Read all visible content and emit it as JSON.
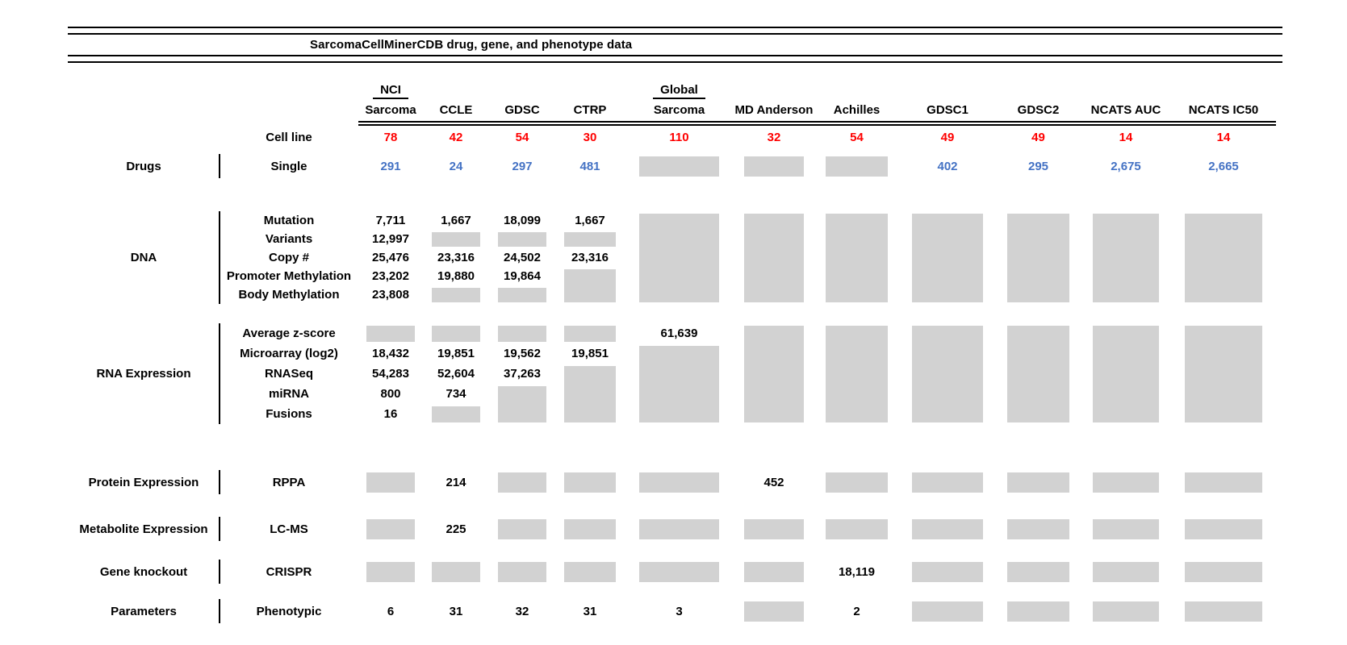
{
  "title": "SarcomaCellMinerCDB drug, gene, and phenotype data",
  "colors": {
    "count_red": "#FE0000",
    "drug_blue": "#4472C4",
    "no_data_box_gray": "#D2D2D2",
    "rule_black": "#000000"
  },
  "chart_data": {
    "type": "table",
    "title": "SarcomaCellMinerCDB drug, gene, and phenotype data",
    "columns": [
      {
        "top": "NCI",
        "label": "Sarcoma"
      },
      {
        "label": "CCLE"
      },
      {
        "label": "GDSC"
      },
      {
        "label": "CTRP"
      },
      {
        "top": "Global",
        "label": "Sarcoma"
      },
      {
        "label": "MD Anderson"
      },
      {
        "label": "Achilles"
      },
      {
        "label": "GDSC1"
      },
      {
        "label": "GDSC2"
      },
      {
        "label": "NCATS AUC"
      },
      {
        "label": "NCATS IC50"
      }
    ],
    "cell_line": {
      "label": "Cell line",
      "values": [
        "78",
        "42",
        "54",
        "30",
        "110",
        "32",
        "54",
        "49",
        "49",
        "14",
        "14"
      ]
    },
    "sections": [
      {
        "category": "Drugs",
        "value_color": "blue",
        "rows": [
          {
            "label": "Single",
            "values": [
              "291",
              "24",
              "297",
              "481",
              null,
              null,
              null,
              "402",
              "295",
              "2,675",
              "2,665"
            ]
          }
        ]
      },
      {
        "category": "DNA",
        "rows": [
          {
            "label": "Mutation",
            "values": [
              "7,711",
              "1,667",
              "18,099",
              "1,667",
              null,
              null,
              null,
              null,
              null,
              null,
              null
            ]
          },
          {
            "label": "Variants",
            "values": [
              "12,997",
              null,
              null,
              null,
              null,
              null,
              null,
              null,
              null,
              null,
              null
            ]
          },
          {
            "label": "Copy #",
            "values": [
              "25,476",
              "23,316",
              "24,502",
              "23,316",
              null,
              null,
              null,
              null,
              null,
              null,
              null
            ]
          },
          {
            "label": "Promoter Methylation",
            "values": [
              "23,202",
              "19,880",
              "19,864",
              null,
              null,
              null,
              null,
              null,
              null,
              null,
              null
            ]
          },
          {
            "label": "Body Methylation",
            "values": [
              "23,808",
              null,
              null,
              null,
              null,
              null,
              null,
              null,
              null,
              null,
              null
            ]
          }
        ]
      },
      {
        "category": "RNA Expression",
        "rows": [
          {
            "label": "Average z-score",
            "values": [
              null,
              null,
              null,
              null,
              "61,639",
              null,
              null,
              null,
              null,
              null,
              null
            ]
          },
          {
            "label": "Microarray (log2)",
            "values": [
              "18,432",
              "19,851",
              "19,562",
              "19,851",
              null,
              null,
              null,
              null,
              null,
              null,
              null
            ]
          },
          {
            "label": "RNASeq",
            "values": [
              "54,283",
              "52,604",
              "37,263",
              null,
              null,
              null,
              null,
              null,
              null,
              null,
              null
            ]
          },
          {
            "label": "miRNA",
            "values": [
              "800",
              "734",
              null,
              null,
              null,
              null,
              null,
              null,
              null,
              null,
              null
            ]
          },
          {
            "label": "Fusions",
            "values": [
              "16",
              null,
              null,
              null,
              null,
              null,
              null,
              null,
              null,
              null,
              null
            ]
          }
        ]
      },
      {
        "category": "Protein Expression",
        "rows": [
          {
            "label": "RPPA",
            "values": [
              null,
              "214",
              null,
              null,
              null,
              "452",
              null,
              null,
              null,
              null,
              null
            ]
          }
        ]
      },
      {
        "category": "Metabolite Expression",
        "rows": [
          {
            "label": "LC-MS",
            "values": [
              null,
              "225",
              null,
              null,
              null,
              null,
              null,
              null,
              null,
              null,
              null
            ]
          }
        ]
      },
      {
        "category": "Gene knockout",
        "rows": [
          {
            "label": "CRISPR",
            "values": [
              null,
              null,
              null,
              null,
              null,
              null,
              "18,119",
              null,
              null,
              null,
              null
            ]
          }
        ]
      },
      {
        "category": "Parameters",
        "rows": [
          {
            "label": "Phenotypic",
            "values": [
              "6",
              "31",
              "32",
              "31",
              "3",
              null,
              "2",
              null,
              null,
              null,
              null
            ]
          }
        ]
      }
    ]
  }
}
